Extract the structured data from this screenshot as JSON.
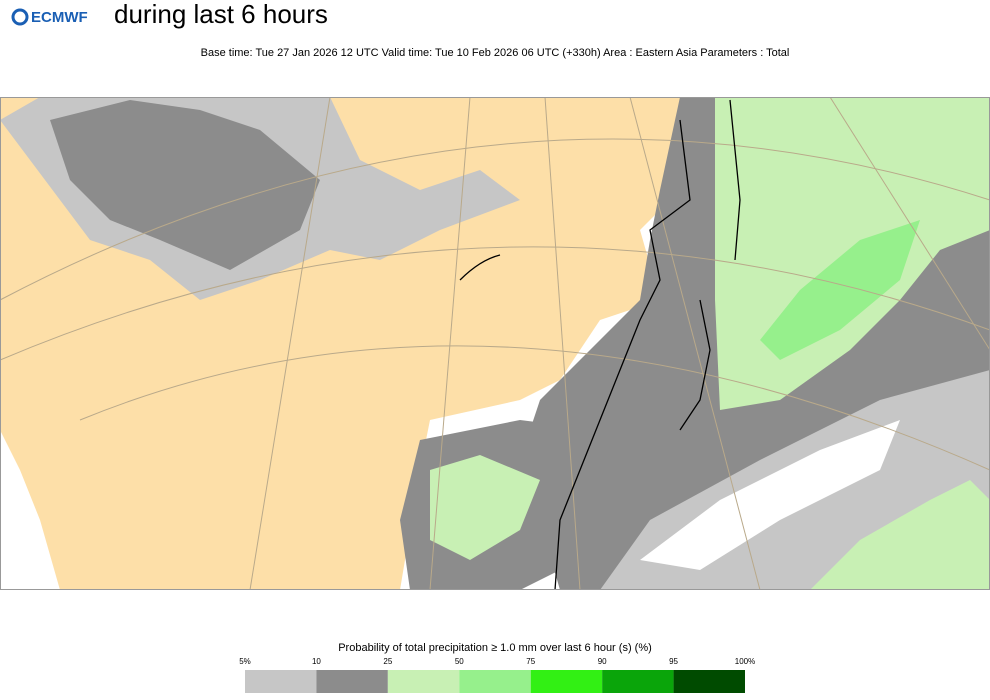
{
  "header": {
    "logo": "ECMWF",
    "title": "during last 6 hours",
    "subtitle": "Base time: Tue 27 Jan 2026 12 UTC Valid time: Tue 10 Feb 2026 06 UTC (+330h) Area : Eastern Asia Parameters : Total"
  },
  "legend": {
    "title": "Probability of total precipitation ≥ 1.0 mm over last 6 hour (s) (%)",
    "ticks": [
      "5%",
      "10",
      "25",
      "50",
      "75",
      "90",
      "95",
      "100%"
    ],
    "colors": [
      "#c6c6c6",
      "#8c8c8c",
      "#c8f0b4",
      "#96f08c",
      "#32f014",
      "#0aa50a",
      "#004b00"
    ]
  }
}
